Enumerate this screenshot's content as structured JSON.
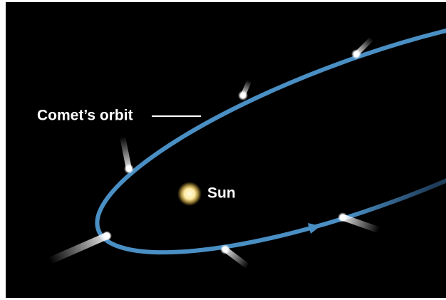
{
  "labels": {
    "orbit": "Comet’s orbit",
    "sun": "Sun"
  }
}
